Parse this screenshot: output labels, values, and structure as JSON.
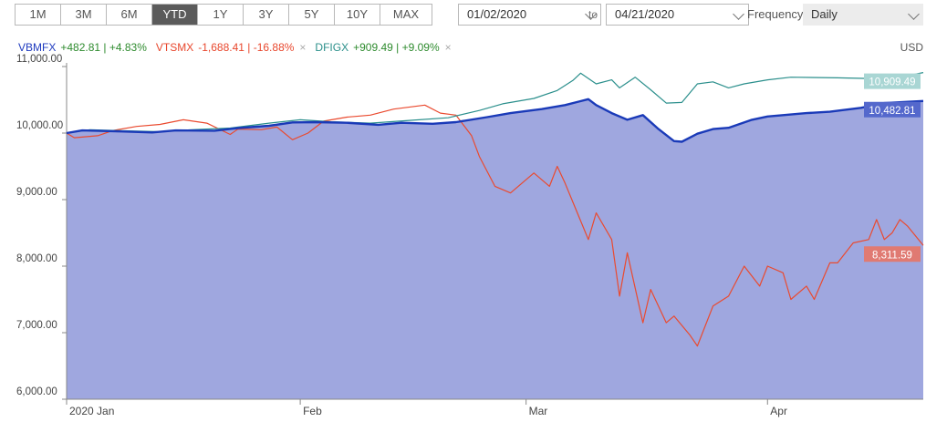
{
  "ranges": [
    {
      "label": "1M",
      "active": false
    },
    {
      "label": "3M",
      "active": false
    },
    {
      "label": "6M",
      "active": false
    },
    {
      "label": "YTD",
      "active": true
    },
    {
      "label": "1Y",
      "active": false
    },
    {
      "label": "3Y",
      "active": false
    },
    {
      "label": "5Y",
      "active": false
    },
    {
      "label": "10Y",
      "active": false
    },
    {
      "label": "MAX",
      "active": false
    }
  ],
  "date_from": "01/02/2020",
  "date_to_label": "to",
  "date_to": "04/21/2020",
  "frequency_label": "Frequency",
  "frequency_value": "Daily",
  "currency": "USD",
  "legend": [
    {
      "ticker": "VBMFX",
      "change": "+482.81 | +4.83%",
      "ticker_color": "#1f3bbf",
      "change_color": "#2e8b2e"
    },
    {
      "ticker": "VTSMX",
      "change": "-1,688.41 | -16.88%",
      "ticker_color": "#e8472d",
      "change_color": "#e8472d"
    },
    {
      "ticker": "DFIGX",
      "change": "+909.49 | +9.09%",
      "ticker_color": "#2a8f8a",
      "change_color": "#2e8b2e"
    }
  ],
  "chart_data": {
    "type": "line",
    "ylim": [
      6000,
      11000
    ],
    "y_ticks": [
      6000,
      7000,
      8000,
      9000,
      10000,
      11000
    ],
    "y_tick_labels": [
      "6,000.00",
      "7,000.00",
      "8,000.00",
      "9,000.00",
      "10,000.00",
      "11,000.00"
    ],
    "x_range": [
      "2020-01-02",
      "2020-04-21"
    ],
    "x_ticks": [
      {
        "label": "2020 Jan",
        "date": "2020-01-02"
      },
      {
        "label": "Feb",
        "date": "2020-02-01"
      },
      {
        "label": "Mar",
        "date": "2020-03-01"
      },
      {
        "label": "Apr",
        "date": "2020-04-01"
      }
    ],
    "grid": false,
    "series": [
      {
        "name": "VBMFX",
        "color": "#1a3ab8",
        "fill": "#9fa7df",
        "area": true,
        "end_label": "10,482.81",
        "label_bg": "#5468cc",
        "points": [
          [
            "2020-01-02",
            10000
          ],
          [
            "2020-01-04",
            10040
          ],
          [
            "2020-01-09",
            10025
          ],
          [
            "2020-01-13",
            10010
          ],
          [
            "2020-01-16",
            10040
          ],
          [
            "2020-01-21",
            10035
          ],
          [
            "2020-01-24",
            10075
          ],
          [
            "2020-01-28",
            10110
          ],
          [
            "2020-01-31",
            10160
          ],
          [
            "2020-02-03",
            10165
          ],
          [
            "2020-02-07",
            10155
          ],
          [
            "2020-02-11",
            10125
          ],
          [
            "2020-02-14",
            10155
          ],
          [
            "2020-02-18",
            10140
          ],
          [
            "2020-02-21",
            10165
          ],
          [
            "2020-02-25",
            10240
          ],
          [
            "2020-02-28",
            10300
          ],
          [
            "2020-03-03",
            10360
          ],
          [
            "2020-03-06",
            10420
          ],
          [
            "2020-03-09",
            10510
          ],
          [
            "2020-03-10",
            10420
          ],
          [
            "2020-03-12",
            10300
          ],
          [
            "2020-03-14",
            10200
          ],
          [
            "2020-03-16",
            10270
          ],
          [
            "2020-03-18",
            10060
          ],
          [
            "2020-03-20",
            9880
          ],
          [
            "2020-03-21",
            9870
          ],
          [
            "2020-03-23",
            9990
          ],
          [
            "2020-03-25",
            10060
          ],
          [
            "2020-03-27",
            10080
          ],
          [
            "2020-03-30",
            10200
          ],
          [
            "2020-04-01",
            10250
          ],
          [
            "2020-04-06",
            10300
          ],
          [
            "2020-04-09",
            10320
          ],
          [
            "2020-04-13",
            10380
          ],
          [
            "2020-04-16",
            10450
          ],
          [
            "2020-04-21",
            10482.81
          ]
        ]
      },
      {
        "name": "DFIGX",
        "color": "#2b8f8c",
        "end_label": "10,909.49",
        "label_bg": "#a9d6d4",
        "points": [
          [
            "2020-01-02",
            10000
          ],
          [
            "2020-01-05",
            10050
          ],
          [
            "2020-01-09",
            10035
          ],
          [
            "2020-01-14",
            10020
          ],
          [
            "2020-01-18",
            10050
          ],
          [
            "2020-01-23",
            10075
          ],
          [
            "2020-01-28",
            10150
          ],
          [
            "2020-02-01",
            10200
          ],
          [
            "2020-02-05",
            10170
          ],
          [
            "2020-02-10",
            10150
          ],
          [
            "2020-02-15",
            10190
          ],
          [
            "2020-02-20",
            10230
          ],
          [
            "2020-02-24",
            10340
          ],
          [
            "2020-02-27",
            10440
          ],
          [
            "2020-03-02",
            10520
          ],
          [
            "2020-03-05",
            10640
          ],
          [
            "2020-03-07",
            10790
          ],
          [
            "2020-03-08",
            10900
          ],
          [
            "2020-03-10",
            10740
          ],
          [
            "2020-03-12",
            10800
          ],
          [
            "2020-03-13",
            10680
          ],
          [
            "2020-03-15",
            10840
          ],
          [
            "2020-03-17",
            10650
          ],
          [
            "2020-03-19",
            10450
          ],
          [
            "2020-03-21",
            10460
          ],
          [
            "2020-03-23",
            10740
          ],
          [
            "2020-03-25",
            10770
          ],
          [
            "2020-03-27",
            10680
          ],
          [
            "2020-03-29",
            10740
          ],
          [
            "2020-04-01",
            10800
          ],
          [
            "2020-04-04",
            10840
          ],
          [
            "2020-04-10",
            10830
          ],
          [
            "2020-04-14",
            10820
          ],
          [
            "2020-04-18",
            10840
          ],
          [
            "2020-04-21",
            10909.49
          ]
        ]
      },
      {
        "name": "VTSMX",
        "color": "#ea4a2f",
        "end_label": "8,311.59",
        "label_bg": "#e07a72",
        "points": [
          [
            "2020-01-02",
            10000
          ],
          [
            "2020-01-03",
            9930
          ],
          [
            "2020-01-06",
            9960
          ],
          [
            "2020-01-08",
            10040
          ],
          [
            "2020-01-11",
            10100
          ],
          [
            "2020-01-14",
            10130
          ],
          [
            "2020-01-17",
            10200
          ],
          [
            "2020-01-20",
            10150
          ],
          [
            "2020-01-23",
            9980
          ],
          [
            "2020-01-24",
            10060
          ],
          [
            "2020-01-27",
            10050
          ],
          [
            "2020-01-29",
            10090
          ],
          [
            "2020-01-31",
            9900
          ],
          [
            "2020-02-02",
            10000
          ],
          [
            "2020-02-04",
            10180
          ],
          [
            "2020-02-07",
            10240
          ],
          [
            "2020-02-10",
            10270
          ],
          [
            "2020-02-13",
            10360
          ],
          [
            "2020-02-17",
            10420
          ],
          [
            "2020-02-19",
            10300
          ],
          [
            "2020-02-21",
            10270
          ],
          [
            "2020-02-23",
            9960
          ],
          [
            "2020-02-24",
            9650
          ],
          [
            "2020-02-26",
            9200
          ],
          [
            "2020-02-28",
            9100
          ],
          [
            "2020-03-02",
            9400
          ],
          [
            "2020-03-04",
            9200
          ],
          [
            "2020-03-05",
            9500
          ],
          [
            "2020-03-06",
            9250
          ],
          [
            "2020-03-09",
            8400
          ],
          [
            "2020-03-10",
            8800
          ],
          [
            "2020-03-12",
            8400
          ],
          [
            "2020-03-13",
            7550
          ],
          [
            "2020-03-14",
            8200
          ],
          [
            "2020-03-16",
            7150
          ],
          [
            "2020-03-17",
            7650
          ],
          [
            "2020-03-19",
            7150
          ],
          [
            "2020-03-20",
            7250
          ],
          [
            "2020-03-22",
            6970
          ],
          [
            "2020-03-23",
            6800
          ],
          [
            "2020-03-25",
            7400
          ],
          [
            "2020-03-27",
            7550
          ],
          [
            "2020-03-29",
            8000
          ],
          [
            "2020-03-31",
            7700
          ],
          [
            "2020-04-01",
            8000
          ],
          [
            "2020-04-03",
            7900
          ],
          [
            "2020-04-04",
            7500
          ],
          [
            "2020-04-06",
            7700
          ],
          [
            "2020-04-07",
            7500
          ],
          [
            "2020-04-09",
            8050
          ],
          [
            "2020-04-10",
            8050
          ],
          [
            "2020-04-12",
            8350
          ],
          [
            "2020-04-14",
            8400
          ],
          [
            "2020-04-15",
            8700
          ],
          [
            "2020-04-16",
            8400
          ],
          [
            "2020-04-17",
            8500
          ],
          [
            "2020-04-18",
            8700
          ],
          [
            "2020-04-19",
            8600
          ],
          [
            "2020-04-21",
            8311.59
          ]
        ]
      }
    ]
  }
}
